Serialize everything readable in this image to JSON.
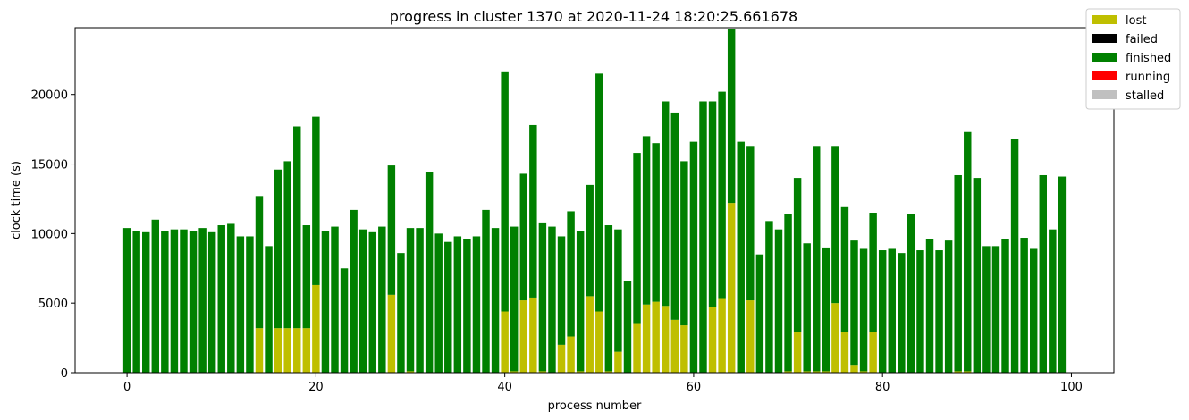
{
  "chart_data": {
    "type": "bar",
    "stacked": true,
    "title": "progress in cluster 1370 at 2020-11-24 18:20:25.661678",
    "xlabel": "process number",
    "ylabel": "clock time (s)",
    "xlim": [
      -5.5,
      104.5
    ],
    "ylim": [
      0,
      24800
    ],
    "xticks": [
      0,
      20,
      40,
      60,
      80,
      100
    ],
    "yticks": [
      0,
      5000,
      10000,
      15000,
      20000
    ],
    "legend_position": "upper-right outside",
    "series": [
      {
        "name": "lost",
        "color": "#bfbf00",
        "values": [
          0,
          0,
          0,
          0,
          0,
          0,
          0,
          0,
          0,
          0,
          0,
          0,
          0,
          0,
          3200,
          0,
          3200,
          3200,
          3200,
          3200,
          6300,
          0,
          0,
          0,
          0,
          0,
          0,
          0,
          5600,
          0,
          100,
          0,
          0,
          0,
          0,
          0,
          0,
          0,
          0,
          0,
          4400,
          100,
          5200,
          5400,
          100,
          0,
          2000,
          2600,
          100,
          5500,
          4400,
          100,
          1500,
          0,
          3500,
          4900,
          5100,
          4800,
          3800,
          3400,
          0,
          0,
          4700,
          5300,
          12200,
          0,
          5200,
          0,
          0,
          0,
          100,
          2900,
          100,
          100,
          100,
          5000,
          2900,
          500,
          100,
          2900,
          0,
          0,
          0,
          0,
          0,
          0,
          0,
          0,
          100,
          100,
          0,
          0,
          0,
          0,
          0,
          0,
          0,
          0,
          0,
          0
        ]
      },
      {
        "name": "failed",
        "color": "#000000",
        "values": [
          0,
          0,
          0,
          0,
          0,
          0,
          0,
          0,
          0,
          0,
          0,
          0,
          0,
          0,
          0,
          0,
          0,
          0,
          0,
          0,
          0,
          0,
          0,
          0,
          0,
          0,
          0,
          0,
          0,
          0,
          0,
          0,
          0,
          0,
          0,
          0,
          0,
          0,
          0,
          0,
          0,
          0,
          0,
          0,
          0,
          0,
          0,
          0,
          0,
          0,
          0,
          0,
          0,
          0,
          0,
          0,
          0,
          0,
          0,
          0,
          0,
          0,
          0,
          0,
          0,
          0,
          0,
          0,
          0,
          0,
          0,
          0,
          0,
          0,
          0,
          0,
          0,
          0,
          0,
          0,
          0,
          0,
          0,
          0,
          0,
          0,
          0,
          0,
          0,
          0,
          0,
          0,
          0,
          0,
          0,
          0,
          0,
          0,
          0,
          0
        ]
      },
      {
        "name": "finished",
        "color": "#008000",
        "values": [
          10400,
          10200,
          10100,
          11000,
          10200,
          10300,
          10300,
          10200,
          10400,
          10100,
          10600,
          10700,
          9800,
          9800,
          9500,
          9100,
          11400,
          12000,
          14500,
          7400,
          12100,
          10200,
          10500,
          7500,
          11700,
          10300,
          10100,
          10500,
          9300,
          8600,
          10300,
          10400,
          14400,
          10000,
          9400,
          9800,
          9600,
          9800,
          11700,
          10400,
          17200,
          10400,
          9100,
          12400,
          10700,
          10500,
          7800,
          9000,
          10100,
          8000,
          17100,
          10500,
          8800,
          6600,
          12300,
          12100,
          11400,
          14700,
          14900,
          11800,
          16600,
          19500,
          14800,
          14900,
          12500,
          16600,
          11100,
          8500,
          10900,
          10300,
          11300,
          11100,
          9200,
          16200,
          8900,
          11300,
          9000,
          9000,
          8800,
          8600,
          8800,
          8900,
          8600,
          11400,
          8800,
          9600,
          8800,
          9500,
          14100,
          17200,
          14000,
          9100,
          9100,
          9600,
          16800,
          9700,
          8900,
          14200,
          10300,
          14100
        ]
      },
      {
        "name": "running",
        "color": "#ff0000",
        "values": [
          0,
          0,
          0,
          0,
          0,
          0,
          0,
          0,
          0,
          0,
          0,
          0,
          0,
          0,
          0,
          0,
          0,
          0,
          0,
          0,
          0,
          0,
          0,
          0,
          0,
          0,
          0,
          0,
          0,
          0,
          0,
          0,
          0,
          0,
          0,
          0,
          0,
          0,
          0,
          0,
          0,
          0,
          0,
          0,
          0,
          0,
          0,
          0,
          0,
          0,
          0,
          0,
          0,
          0,
          0,
          0,
          0,
          0,
          0,
          0,
          0,
          0,
          0,
          0,
          0,
          0,
          0,
          0,
          0,
          0,
          0,
          0,
          0,
          0,
          0,
          0,
          0,
          0,
          0,
          0,
          0,
          0,
          0,
          0,
          0,
          0,
          0,
          0,
          0,
          0,
          0,
          0,
          0,
          0,
          0,
          0,
          0,
          0,
          0,
          0
        ]
      },
      {
        "name": "stalled",
        "color": "#c0c0c0",
        "values": [
          0,
          0,
          0,
          0,
          0,
          0,
          0,
          0,
          0,
          0,
          0,
          0,
          0,
          0,
          0,
          0,
          0,
          0,
          0,
          0,
          0,
          0,
          0,
          0,
          0,
          0,
          0,
          0,
          0,
          0,
          0,
          0,
          0,
          0,
          0,
          0,
          0,
          0,
          0,
          0,
          0,
          0,
          0,
          0,
          0,
          0,
          0,
          0,
          0,
          0,
          0,
          0,
          0,
          0,
          0,
          0,
          0,
          0,
          0,
          0,
          0,
          0,
          0,
          0,
          0,
          0,
          0,
          0,
          0,
          0,
          0,
          0,
          0,
          0,
          0,
          0,
          0,
          0,
          0,
          0,
          0,
          0,
          0,
          0,
          0,
          0,
          0,
          0,
          0,
          0,
          0,
          0,
          0,
          0,
          0,
          0,
          0,
          0,
          0,
          0
        ]
      }
    ],
    "grid": false
  }
}
